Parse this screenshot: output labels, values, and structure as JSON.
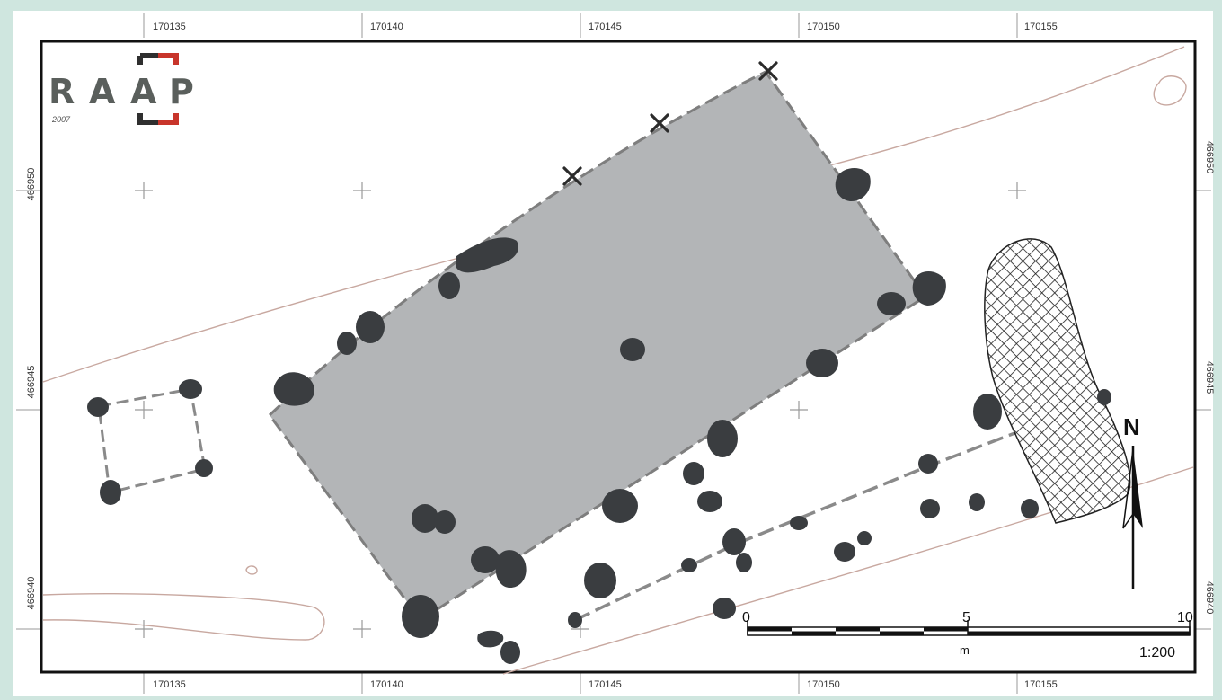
{
  "logo": {
    "letters": [
      "R",
      "A",
      "A",
      "P"
    ],
    "year": "2007"
  },
  "grid": {
    "x_labels": [
      "170135",
      "170140",
      "170145",
      "170150",
      "170155"
    ],
    "y_labels": [
      "466950",
      "466945",
      "466940"
    ]
  },
  "north": {
    "label": "N"
  },
  "scale_bar": {
    "ticks": [
      "0",
      "5",
      "10"
    ],
    "unit": "m",
    "ratio": "1:200"
  },
  "colors": {
    "background": "#cfe6df",
    "frame_fill": "#ffffff",
    "excavation_fill": "#b3b5b7",
    "feature_fill": "#3a3d40",
    "dashed_line": "#7e7e7e",
    "contour": "#c8a8a0",
    "logo_gray": "#5a5f5c",
    "logo_red": "#c8352b"
  }
}
